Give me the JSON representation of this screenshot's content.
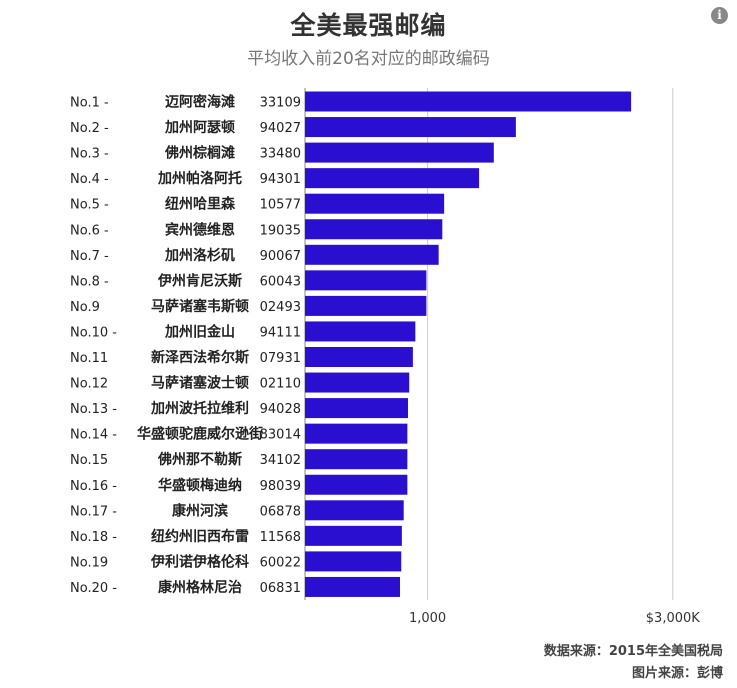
{
  "title": "全美最强邮编",
  "subtitle": "平均收入前20名对应的邮政编码",
  "source_line": "数据来源：2015年全美国税局",
  "image_source_line": "图片来源：彭博",
  "colors": {
    "bar": "#2a0fd0",
    "grid": "#cccccc",
    "text": "#222222"
  },
  "icons": {
    "info": "info-icon"
  },
  "chart_data": {
    "type": "bar",
    "orientation": "horizontal",
    "grid": true,
    "x_ticks": [
      "1,000",
      "$3,000K"
    ],
    "x_tick_values": [
      1000,
      3000
    ],
    "xlim": [
      0,
      3500
    ],
    "rows": [
      {
        "rank": "No.1 -",
        "place": "迈阿密海滩",
        "zip": "33109",
        "value": 2660
      },
      {
        "rank": "No.2 -",
        "place": "加州阿瑟顿",
        "zip": "94027",
        "value": 1720
      },
      {
        "rank": "No.3 -",
        "place": "佛州棕榈滩",
        "zip": "33480",
        "value": 1540
      },
      {
        "rank": "No.4 -",
        "place": "加州帕洛阿托",
        "zip": "94301",
        "value": 1420
      },
      {
        "rank": "No.5 -",
        "place": "纽州哈里森",
        "zip": "10577",
        "value": 1135
      },
      {
        "rank": "No.6 -",
        "place": "宾州德维恩",
        "zip": "19035",
        "value": 1120
      },
      {
        "rank": "No.7 -",
        "place": "加州洛杉矶",
        "zip": "90067",
        "value": 1090
      },
      {
        "rank": "No.8 -",
        "place": "伊州肯尼沃斯",
        "zip": "60043",
        "value": 990
      },
      {
        "rank": "No.9",
        "place": "马萨诸塞韦斯顿",
        "zip": "02493",
        "value": 990
      },
      {
        "rank": "No.10 -",
        "place": "加州旧金山",
        "zip": "94111",
        "value": 900
      },
      {
        "rank": "No.11",
        "place": "新泽西法希尔斯",
        "zip": "07931",
        "value": 880
      },
      {
        "rank": "No.12",
        "place": "马萨诸塞波士顿",
        "zip": "02110",
        "value": 850
      },
      {
        "rank": "No.13 -",
        "place": "加州波托拉维利",
        "zip": "94028",
        "value": 840
      },
      {
        "rank": "No.14 -",
        "place": "华盛顿驼鹿威尔逊街",
        "zip": "83014",
        "value": 835
      },
      {
        "rank": "No.15",
        "place": "佛州那不勒斯",
        "zip": "34102",
        "value": 835
      },
      {
        "rank": "No.16 -",
        "place": "华盛顿梅迪纳",
        "zip": "98039",
        "value": 835
      },
      {
        "rank": "No.17 -",
        "place": "康州河滨",
        "zip": "06878",
        "value": 805
      },
      {
        "rank": "No.18 -",
        "place": "纽约州旧西布雷",
        "zip": "11568",
        "value": 790
      },
      {
        "rank": "No.19",
        "place": "伊利诺伊格伦科",
        "zip": "60022",
        "value": 785
      },
      {
        "rank": "No.20 -",
        "place": "康州格林尼治",
        "zip": "06831",
        "value": 775
      }
    ]
  }
}
